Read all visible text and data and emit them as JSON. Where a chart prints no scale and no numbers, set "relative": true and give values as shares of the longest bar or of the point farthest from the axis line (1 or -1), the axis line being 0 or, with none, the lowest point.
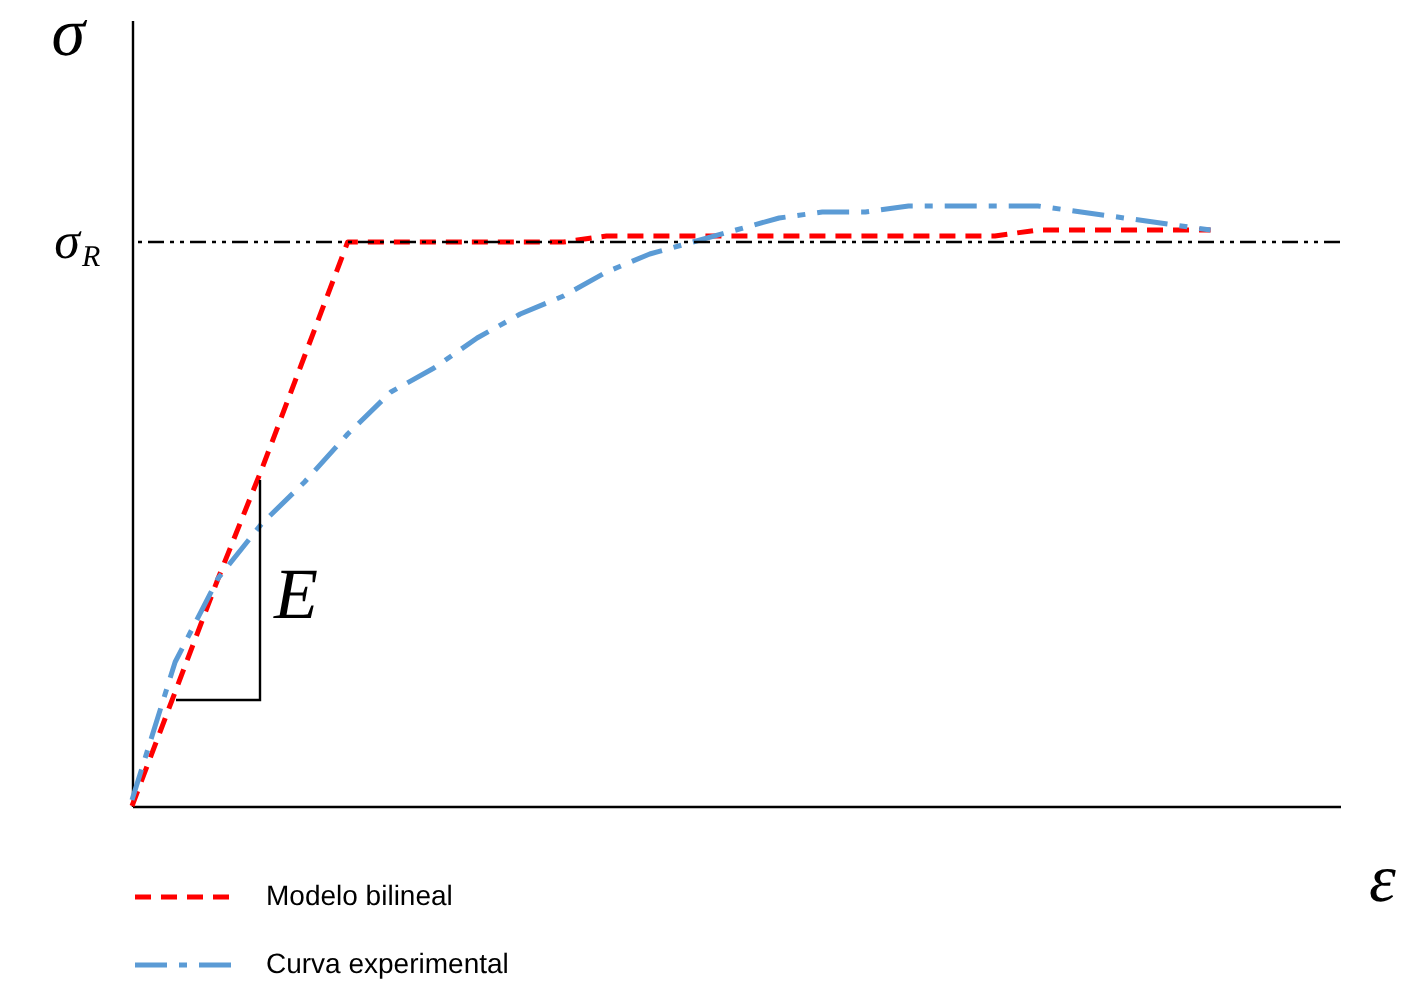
{
  "chart_data": {
    "type": "line",
    "relative": true,
    "xlabel": "ε",
    "ylabel": "σ",
    "grid": false,
    "legend": "bottom left",
    "categories": [
      null,
      null,
      null,
      null,
      null,
      null,
      null,
      null,
      null,
      null,
      null,
      null,
      null,
      null,
      null,
      null,
      null,
      null,
      null,
      null,
      null,
      null,
      null,
      null,
      null,
      null
    ],
    "series": [
      {
        "name": "Modelo bilineal",
        "color": "#ff0000",
        "line_style": "dashed",
        "values": [
          0,
          0.19,
          0.38,
          0.56,
          0.75,
          0.94,
          0.94,
          0.94,
          0.94,
          0.94,
          0.94,
          0.95,
          0.95,
          0.95,
          0.95,
          0.95,
          0.95,
          0.95,
          0.95,
          0.95,
          0.95,
          0.96,
          0.96,
          0.96,
          0.96,
          0.96
        ]
      },
      {
        "name": "Curva experimental",
        "color": "#5b9bd5",
        "line_style": "dashdot",
        "values": [
          0.01,
          0.24,
          0.38,
          0.47,
          0.54,
          0.62,
          0.69,
          0.73,
          0.78,
          0.82,
          0.85,
          0.89,
          0.92,
          0.94,
          0.96,
          0.98,
          0.99,
          0.99,
          1.0,
          1.0,
          1.0,
          1.0,
          0.99,
          0.98,
          0.97,
          0.96
        ]
      }
    ],
    "ref_lines": [
      {
        "axis": "y",
        "value": 0.94,
        "label": "σ$_{R}$",
        "color": "#000000",
        "line_style": "dashdotdot"
      }
    ],
    "annotations": [
      "E"
    ]
  }
}
